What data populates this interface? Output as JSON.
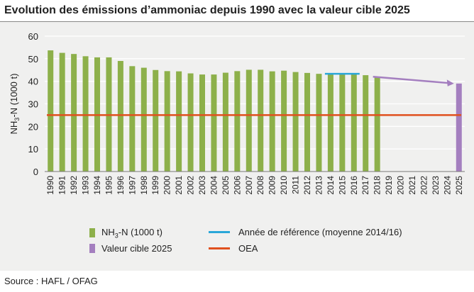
{
  "title": "Evolution des émissions d’ammoniac depuis 1990 avec la valeur cible 2025",
  "source": "Source : HAFL / OFAG",
  "colors": {
    "panel": "#f0f0ef",
    "bars": "#8db04a",
    "target": "#a47fbf",
    "reference": "#2aa7d8",
    "oea": "#e0501e",
    "grid": "#ffffff"
  },
  "legend": [
    {
      "id": "nh3",
      "pre": "NH",
      "sub": "3",
      "post": "-N (1000 t)",
      "color": "#8db04a",
      "kind": "box"
    },
    {
      "id": "target",
      "pre": "Valeur cible 2025",
      "sub": "",
      "post": "",
      "color": "#a47fbf",
      "kind": "box"
    },
    {
      "id": "ref",
      "pre": "Année de référence (moyenne 2014/16)",
      "sub": "",
      "post": "",
      "color": "#2aa7d8",
      "kind": "line"
    },
    {
      "id": "oea",
      "pre": "OEA",
      "sub": "",
      "post": "",
      "color": "#e0501e",
      "kind": "line"
    }
  ],
  "chart_data": {
    "type": "bar",
    "ylabel": {
      "pre": "NH",
      "sub": "3",
      "post": "-N (1000 t)"
    },
    "ylim": [
      0,
      60
    ],
    "yticks": [
      0,
      10,
      20,
      30,
      40,
      50,
      60
    ],
    "grid": true,
    "categories": [
      "1990",
      "1991",
      "1992",
      "1993",
      "1994",
      "1995",
      "1996",
      "1997",
      "1998",
      "1999",
      "2000",
      "2001",
      "2002",
      "2003",
      "2004",
      "2005",
      "2006",
      "2007",
      "2008",
      "2009",
      "2010",
      "2011",
      "2012",
      "2013",
      "2014",
      "2015",
      "2016",
      "2017",
      "2018",
      "2019",
      "2020",
      "2021",
      "2022",
      "2023",
      "2024",
      "2025"
    ],
    "series": [
      {
        "name": "NH3-N (1000 t)",
        "color": "#8db04a",
        "values": [
          53.7,
          52.6,
          52.1,
          51.1,
          50.6,
          50.6,
          49.0,
          46.7,
          46.0,
          45.0,
          44.5,
          44.4,
          43.5,
          43.0,
          43.0,
          43.8,
          44.5,
          45.1,
          45.1,
          44.4,
          44.7,
          44.1,
          43.7,
          43.3,
          43.3,
          43.5,
          43.1,
          42.7,
          42.1,
          null,
          null,
          null,
          null,
          null,
          null,
          null
        ]
      },
      {
        "name": "Valeur cible 2025",
        "color": "#a47fbf",
        "values": [
          null,
          null,
          null,
          null,
          null,
          null,
          null,
          null,
          null,
          null,
          null,
          null,
          null,
          null,
          null,
          null,
          null,
          null,
          null,
          null,
          null,
          null,
          null,
          null,
          null,
          null,
          null,
          null,
          null,
          null,
          null,
          null,
          null,
          null,
          null,
          39.0
        ]
      }
    ],
    "reference_line": {
      "name": "Année de référence (moyenne 2014/16)",
      "value": 43.3,
      "from": "2014",
      "to": "2016",
      "color": "#2aa7d8"
    },
    "oea_line": {
      "name": "OEA",
      "value": 25,
      "color": "#e0501e"
    },
    "trend_arrow": {
      "from": {
        "x": "2018",
        "y": 42.0
      },
      "to": {
        "x": "2025",
        "y": 39.0
      },
      "color": "#a47fbf"
    }
  }
}
